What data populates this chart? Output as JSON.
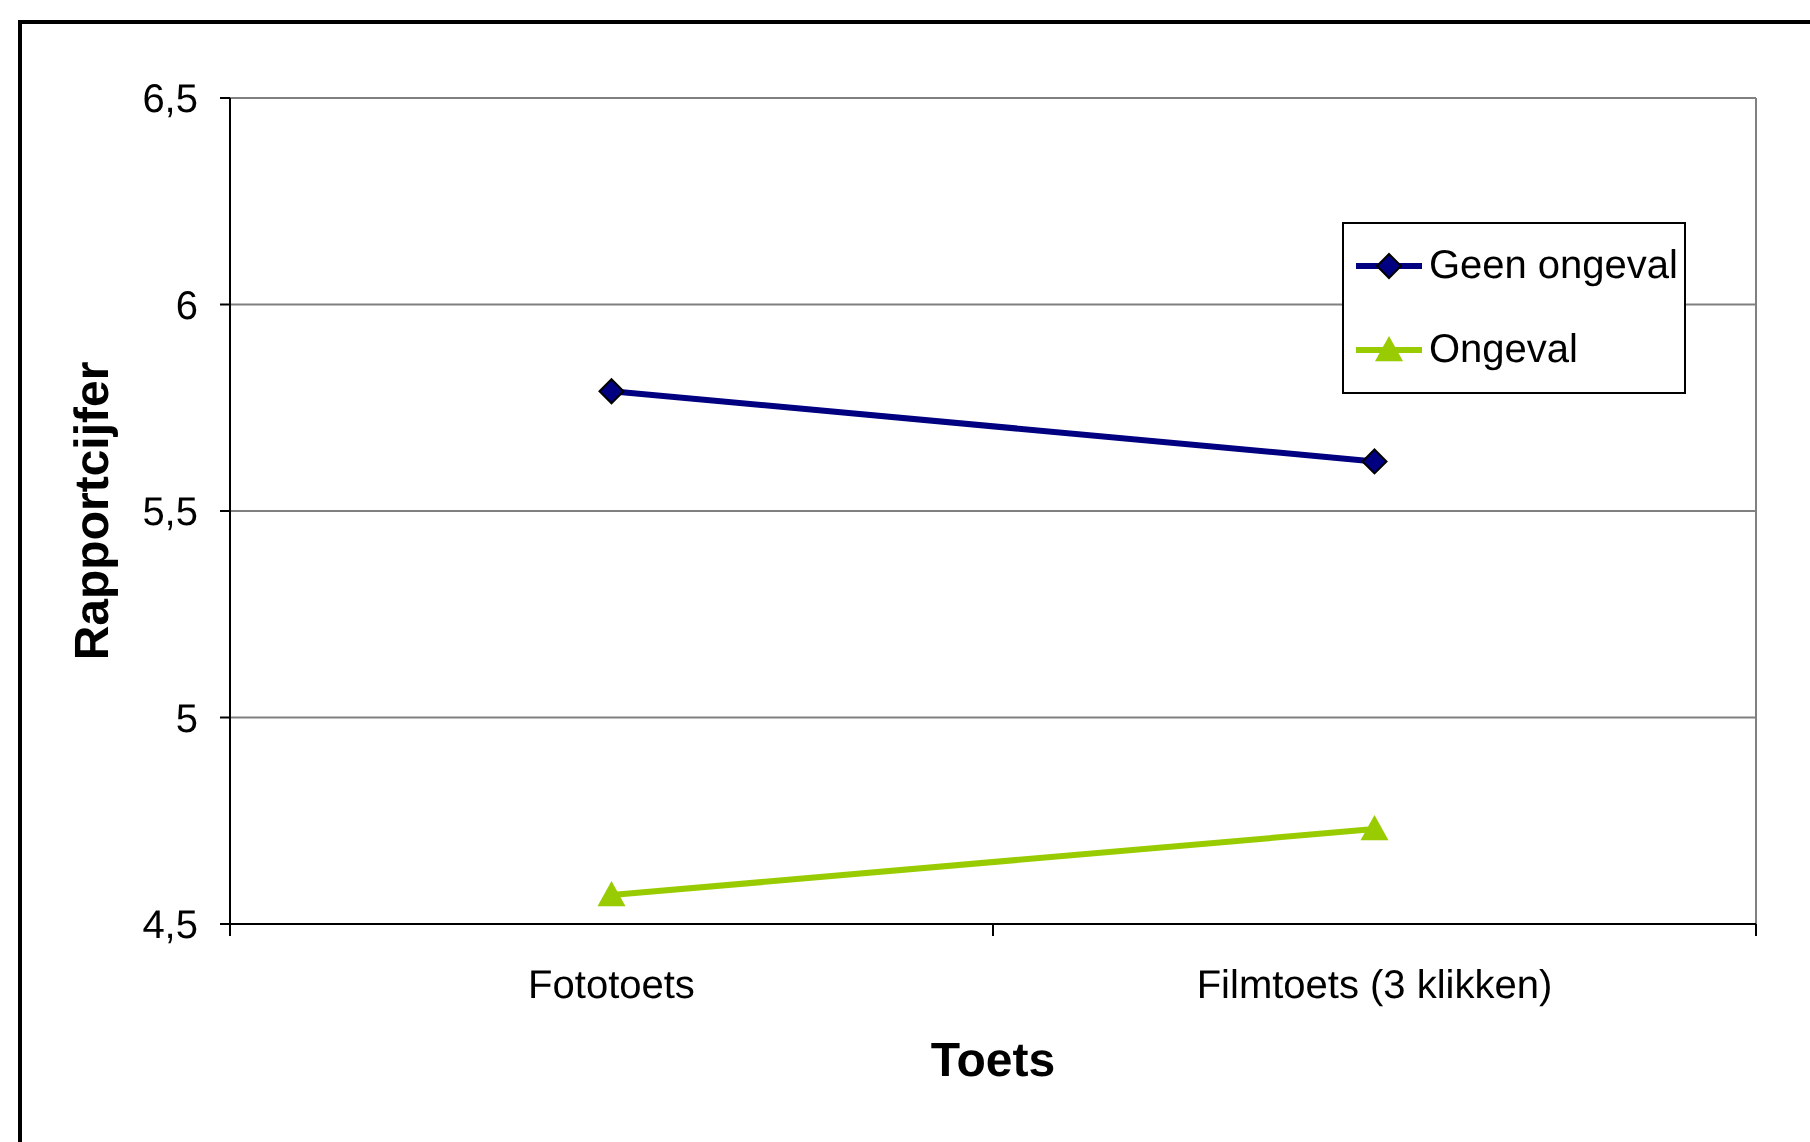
{
  "chart_data": {
    "type": "line",
    "xlabel": "Toets",
    "ylabel": "Rapportcijfer",
    "categories": [
      "Fototoets",
      "Filmtoets (3 klikken)"
    ],
    "series": [
      {
        "name": "Geen ongeval",
        "color": "#000080",
        "values": [
          5.79,
          5.62
        ],
        "marker": "diamond"
      },
      {
        "name": "Ongeval",
        "color": "#99cc00",
        "values": [
          4.57,
          4.73
        ],
        "marker": "triangle"
      }
    ],
    "ylim": [
      4.5,
      6.5
    ],
    "yticks": [
      {
        "value": 4.5,
        "label": "4,5"
      },
      5,
      {
        "value": 5.5,
        "label": "5,5"
      },
      6,
      {
        "value": 6.5,
        "label": "6,5"
      }
    ],
    "grid": "y",
    "legend": "top right",
    "line_style": "solid"
  }
}
